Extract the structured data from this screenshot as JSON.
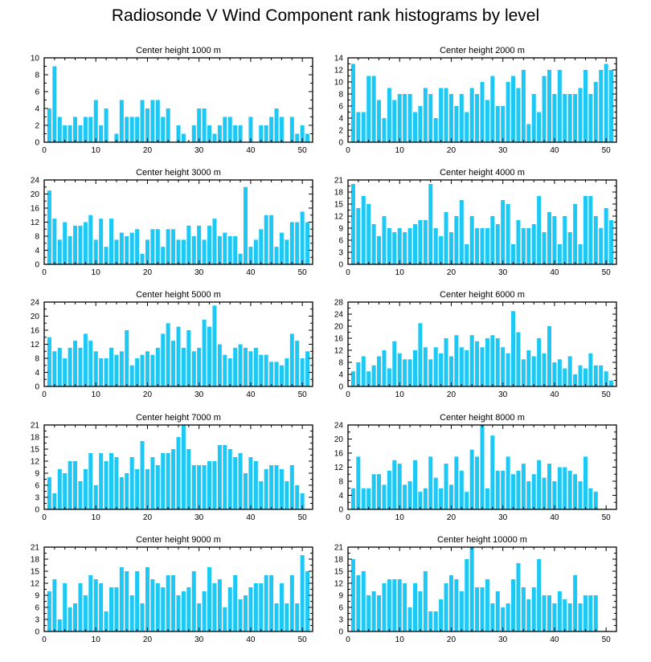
{
  "title": "Radiosonde V Wind Component rank histograms by level",
  "colors": {
    "bar": "#1EC8F5",
    "axis": "#000000"
  },
  "chart_data": [
    {
      "type": "bar",
      "title": "Center height 1000 m",
      "xlabel": "",
      "ylabel": "",
      "xlim": [
        0,
        52
      ],
      "xticks": [
        0,
        10,
        20,
        30,
        40,
        50
      ],
      "ylim": [
        0,
        10
      ],
      "yticks": [
        0,
        2,
        4,
        6,
        8,
        10
      ],
      "x": [
        1,
        2,
        3,
        4,
        5,
        6,
        7,
        8,
        9,
        10,
        11,
        12,
        13,
        14,
        15,
        16,
        17,
        18,
        19,
        20,
        21,
        22,
        23,
        24,
        25,
        26,
        27,
        28,
        29,
        30,
        31,
        32,
        33,
        34,
        35,
        36,
        37,
        38,
        39,
        40,
        41,
        42,
        43,
        44,
        45,
        46,
        47,
        48,
        49,
        50,
        51
      ],
      "values": [
        4,
        9,
        3,
        2,
        2,
        3,
        2,
        3,
        3,
        5,
        2,
        4,
        0,
        1,
        5,
        3,
        3,
        3,
        5,
        4,
        5,
        5,
        3,
        4,
        0,
        2,
        1,
        0,
        2,
        4,
        4,
        2,
        1,
        2,
        3,
        3,
        2,
        2,
        0,
        3,
        0,
        2,
        2,
        3,
        4,
        3,
        0,
        3,
        1,
        2,
        1
      ]
    },
    {
      "type": "bar",
      "title": "Center height 2000 m",
      "xlabel": "",
      "ylabel": "",
      "xlim": [
        0,
        52
      ],
      "xticks": [
        0,
        10,
        20,
        30,
        40,
        50
      ],
      "ylim": [
        0,
        14
      ],
      "yticks": [
        0,
        2,
        4,
        6,
        8,
        10,
        12,
        14
      ],
      "x": [
        1,
        2,
        3,
        4,
        5,
        6,
        7,
        8,
        9,
        10,
        11,
        12,
        13,
        14,
        15,
        16,
        17,
        18,
        19,
        20,
        21,
        22,
        23,
        24,
        25,
        26,
        27,
        28,
        29,
        30,
        31,
        32,
        33,
        34,
        35,
        36,
        37,
        38,
        39,
        40,
        41,
        42,
        43,
        44,
        45,
        46,
        47,
        48,
        49,
        50,
        51
      ],
      "values": [
        13,
        5,
        5,
        11,
        11,
        7,
        4,
        9,
        7,
        8,
        8,
        8,
        5,
        6,
        9,
        8,
        4,
        9,
        9,
        8,
        6,
        8,
        5,
        9,
        8,
        10,
        7,
        11,
        6,
        6,
        10,
        11,
        9,
        12,
        3,
        8,
        5,
        11,
        12,
        8,
        12,
        8,
        8,
        8,
        9,
        12,
        8,
        10,
        12,
        13,
        12
      ]
    },
    {
      "type": "bar",
      "title": "Center height 3000 m",
      "xlabel": "",
      "ylabel": "",
      "xlim": [
        0,
        52
      ],
      "xticks": [
        0,
        10,
        20,
        30,
        40,
        50
      ],
      "ylim": [
        0,
        24
      ],
      "yticks": [
        0,
        4,
        8,
        12,
        16,
        20,
        24
      ],
      "x": [
        1,
        2,
        3,
        4,
        5,
        6,
        7,
        8,
        9,
        10,
        11,
        12,
        13,
        14,
        15,
        16,
        17,
        18,
        19,
        20,
        21,
        22,
        23,
        24,
        25,
        26,
        27,
        28,
        29,
        30,
        31,
        32,
        33,
        34,
        35,
        36,
        37,
        38,
        39,
        40,
        41,
        42,
        43,
        44,
        45,
        46,
        47,
        48,
        49,
        50,
        51
      ],
      "values": [
        21,
        13,
        7,
        12,
        8,
        11,
        11,
        12,
        14,
        7,
        13,
        5,
        13,
        7,
        9,
        8,
        9,
        10,
        3,
        7,
        10,
        10,
        5,
        10,
        10,
        7,
        7,
        11,
        8,
        11,
        7,
        11,
        13,
        8,
        9,
        8,
        8,
        3,
        22,
        5,
        7,
        10,
        14,
        14,
        5,
        9,
        7,
        12,
        12,
        15,
        12
      ]
    },
    {
      "type": "bar",
      "title": "Center height 4000 m",
      "xlabel": "",
      "ylabel": "",
      "xlim": [
        0,
        52
      ],
      "xticks": [
        0,
        10,
        20,
        30,
        40,
        50
      ],
      "ylim": [
        0,
        21
      ],
      "yticks": [
        0,
        3,
        6,
        9,
        12,
        15,
        18,
        21
      ],
      "x": [
        1,
        2,
        3,
        4,
        5,
        6,
        7,
        8,
        9,
        10,
        11,
        12,
        13,
        14,
        15,
        16,
        17,
        18,
        19,
        20,
        21,
        22,
        23,
        24,
        25,
        26,
        27,
        28,
        29,
        30,
        31,
        32,
        33,
        34,
        35,
        36,
        37,
        38,
        39,
        40,
        41,
        42,
        43,
        44,
        45,
        46,
        47,
        48,
        49,
        50,
        51
      ],
      "values": [
        20,
        14,
        17,
        15,
        10,
        7,
        12,
        9,
        8,
        9,
        8,
        9,
        10,
        11,
        11,
        20,
        9,
        7,
        13,
        8,
        12,
        16,
        5,
        12,
        9,
        9,
        9,
        12,
        10,
        16,
        15,
        5,
        11,
        9,
        9,
        10,
        17,
        8,
        13,
        12,
        5,
        12,
        8,
        15,
        5,
        17,
        17,
        12,
        9,
        14,
        11
      ]
    },
    {
      "type": "bar",
      "title": "Center height 5000 m",
      "xlabel": "",
      "ylabel": "",
      "xlim": [
        0,
        52
      ],
      "xticks": [
        0,
        10,
        20,
        30,
        40,
        50
      ],
      "ylim": [
        0,
        24
      ],
      "yticks": [
        0,
        4,
        8,
        12,
        16,
        20,
        24
      ],
      "x": [
        1,
        2,
        3,
        4,
        5,
        6,
        7,
        8,
        9,
        10,
        11,
        12,
        13,
        14,
        15,
        16,
        17,
        18,
        19,
        20,
        21,
        22,
        23,
        24,
        25,
        26,
        27,
        28,
        29,
        30,
        31,
        32,
        33,
        34,
        35,
        36,
        37,
        38,
        39,
        40,
        41,
        42,
        43,
        44,
        45,
        46,
        47,
        48,
        49,
        50,
        51
      ],
      "values": [
        14,
        10,
        11,
        8,
        11,
        13,
        11,
        15,
        13,
        10,
        8,
        8,
        11,
        9,
        10,
        16,
        6,
        8,
        9,
        10,
        9,
        11,
        15,
        18,
        13,
        17,
        11,
        16,
        10,
        11,
        19,
        17,
        23,
        12,
        9,
        8,
        11,
        12,
        11,
        10,
        11,
        9,
        9,
        7,
        7,
        6,
        8,
        15,
        13,
        8,
        10
      ]
    },
    {
      "type": "bar",
      "title": "Center height 6000 m",
      "xlabel": "",
      "ylabel": "",
      "xlim": [
        0,
        52
      ],
      "xticks": [
        0,
        10,
        20,
        30,
        40,
        50
      ],
      "ylim": [
        0,
        28
      ],
      "yticks": [
        0,
        4,
        8,
        12,
        16,
        20,
        24,
        28
      ],
      "x": [
        1,
        2,
        3,
        4,
        5,
        6,
        7,
        8,
        9,
        10,
        11,
        12,
        13,
        14,
        15,
        16,
        17,
        18,
        19,
        20,
        21,
        22,
        23,
        24,
        25,
        26,
        27,
        28,
        29,
        30,
        31,
        32,
        33,
        34,
        35,
        36,
        37,
        38,
        39,
        40,
        41,
        42,
        43,
        44,
        45,
        46,
        47,
        48,
        49,
        50,
        51
      ],
      "values": [
        5,
        8,
        10,
        5,
        7,
        10,
        12,
        6,
        15,
        11,
        9,
        9,
        12,
        21,
        13,
        9,
        13,
        11,
        16,
        10,
        17,
        13,
        12,
        17,
        15,
        13,
        16,
        17,
        16,
        13,
        11,
        25,
        18,
        9,
        12,
        10,
        16,
        11,
        20,
        8,
        9,
        6,
        10,
        4,
        7,
        6,
        11,
        7,
        7,
        5,
        2
      ]
    },
    {
      "type": "bar",
      "title": "Center height 7000 m",
      "xlabel": "",
      "ylabel": "",
      "xlim": [
        0,
        52
      ],
      "xticks": [
        0,
        10,
        20,
        30,
        40,
        50
      ],
      "ylim": [
        0,
        21
      ],
      "yticks": [
        0,
        3,
        6,
        9,
        12,
        15,
        18,
        21
      ],
      "x": [
        1,
        2,
        3,
        4,
        5,
        6,
        7,
        8,
        9,
        10,
        11,
        12,
        13,
        14,
        15,
        16,
        17,
        18,
        19,
        20,
        21,
        22,
        23,
        24,
        25,
        26,
        27,
        28,
        29,
        30,
        31,
        32,
        33,
        34,
        35,
        36,
        37,
        38,
        39,
        40,
        41,
        42,
        43,
        44,
        45,
        46,
        47,
        48,
        49,
        50,
        51
      ],
      "values": [
        8,
        4,
        10,
        9,
        12,
        12,
        7,
        10,
        14,
        6,
        14,
        12,
        14,
        13,
        8,
        9,
        13,
        10,
        17,
        10,
        13,
        11,
        14,
        14,
        15,
        18,
        21,
        15,
        11,
        11,
        11,
        12,
        12,
        16,
        16,
        15,
        13,
        14,
        9,
        13,
        12,
        7,
        10,
        11,
        11,
        10,
        7,
        11,
        6,
        4,
        0
      ]
    },
    {
      "type": "bar",
      "title": "Center height 8000 m",
      "xlabel": "",
      "ylabel": "",
      "xlim": [
        0,
        52
      ],
      "xticks": [
        0,
        10,
        20,
        30,
        40,
        50
      ],
      "ylim": [
        0,
        24
      ],
      "yticks": [
        0,
        4,
        8,
        12,
        16,
        20,
        24
      ],
      "x": [
        1,
        2,
        3,
        4,
        5,
        6,
        7,
        8,
        9,
        10,
        11,
        12,
        13,
        14,
        15,
        16,
        17,
        18,
        19,
        20,
        21,
        22,
        23,
        24,
        25,
        26,
        27,
        28,
        29,
        30,
        31,
        32,
        33,
        34,
        35,
        36,
        37,
        38,
        39,
        40,
        41,
        42,
        43,
        44,
        45,
        46,
        47,
        48,
        49,
        50,
        51
      ],
      "values": [
        6,
        15,
        6,
        6,
        10,
        10,
        7,
        11,
        14,
        13,
        7,
        8,
        14,
        5,
        6,
        15,
        9,
        6,
        13,
        7,
        15,
        11,
        5,
        17,
        15,
        24,
        6,
        21,
        11,
        11,
        15,
        10,
        11,
        13,
        8,
        10,
        14,
        9,
        13,
        8,
        12,
        12,
        11,
        10,
        8,
        15,
        6,
        5,
        0,
        0,
        0
      ]
    },
    {
      "type": "bar",
      "title": "Center height 9000 m",
      "xlabel": "",
      "ylabel": "",
      "xlim": [
        0,
        52
      ],
      "xticks": [
        0,
        10,
        20,
        30,
        40,
        50
      ],
      "ylim": [
        0,
        21
      ],
      "yticks": [
        0,
        3,
        6,
        9,
        12,
        15,
        18,
        21
      ],
      "x": [
        1,
        2,
        3,
        4,
        5,
        6,
        7,
        8,
        9,
        10,
        11,
        12,
        13,
        14,
        15,
        16,
        17,
        18,
        19,
        20,
        21,
        22,
        23,
        24,
        25,
        26,
        27,
        28,
        29,
        30,
        31,
        32,
        33,
        34,
        35,
        36,
        37,
        38,
        39,
        40,
        41,
        42,
        43,
        44,
        45,
        46,
        47,
        48,
        49,
        50,
        51
      ],
      "values": [
        10,
        13,
        3,
        12,
        6,
        7,
        12,
        9,
        14,
        13,
        12,
        5,
        11,
        11,
        16,
        15,
        9,
        15,
        7,
        16,
        13,
        12,
        11,
        14,
        14,
        9,
        10,
        11,
        15,
        7,
        10,
        16,
        12,
        13,
        6,
        11,
        14,
        8,
        9,
        11,
        12,
        12,
        14,
        14,
        7,
        12,
        7,
        14,
        7,
        19,
        15
      ]
    },
    {
      "type": "bar",
      "title": "Center height 10000 m",
      "xlabel": "",
      "ylabel": "",
      "xlim": [
        0,
        52
      ],
      "xticks": [
        0,
        10,
        20,
        30,
        40,
        50
      ],
      "ylim": [
        0,
        21
      ],
      "yticks": [
        0,
        3,
        6,
        9,
        12,
        15,
        18,
        21
      ],
      "x": [
        1,
        2,
        3,
        4,
        5,
        6,
        7,
        8,
        9,
        10,
        11,
        12,
        13,
        14,
        15,
        16,
        17,
        18,
        19,
        20,
        21,
        22,
        23,
        24,
        25,
        26,
        27,
        28,
        29,
        30,
        31,
        32,
        33,
        34,
        35,
        36,
        37,
        38,
        39,
        40,
        41,
        42,
        43,
        44,
        45,
        46,
        47,
        48,
        49,
        50,
        51
      ],
      "values": [
        18,
        14,
        15,
        9,
        10,
        9,
        12,
        13,
        13,
        13,
        12,
        6,
        12,
        10,
        15,
        5,
        5,
        8,
        12,
        14,
        13,
        10,
        18,
        21,
        11,
        11,
        13,
        7,
        10,
        6,
        7,
        13,
        17,
        11,
        8,
        11,
        18,
        9,
        9,
        7,
        10,
        8,
        7,
        14,
        7,
        9,
        9,
        9,
        0,
        0,
        0
      ]
    }
  ]
}
